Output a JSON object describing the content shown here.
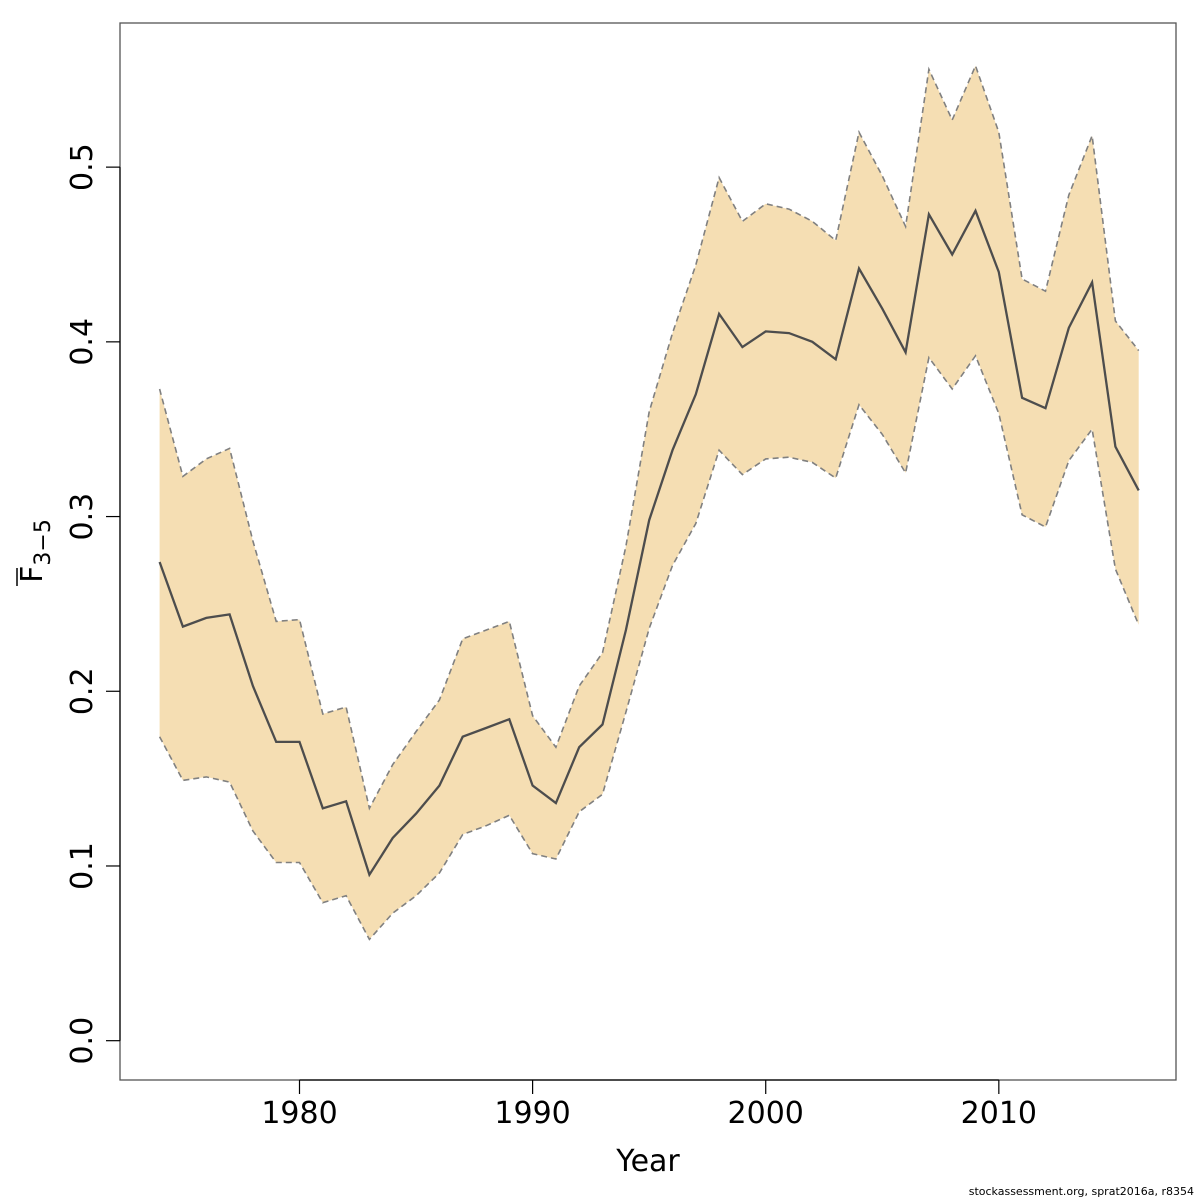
{
  "chart_data": {
    "type": "line",
    "xlabel": "Year",
    "ylabel": "F",
    "ylabel_subscript": "3−5",
    "xlim": [
      1972.3,
      2017.6
    ],
    "ylim": [
      -0.0225,
      0.5825
    ],
    "xticks": [
      1980,
      1990,
      2000,
      2010
    ],
    "yticks": [
      0.0,
      0.1,
      0.2,
      0.3,
      0.4,
      0.5
    ],
    "ytick_labels": [
      "0.0",
      "0.1",
      "0.2",
      "0.3",
      "0.4",
      "0.5"
    ],
    "grid": false,
    "colors": {
      "band": "#f5deb3",
      "line": "#4d4d4d",
      "bounds": "#808080",
      "frame": "#555555"
    },
    "x": [
      1974,
      1975,
      1976,
      1977,
      1978,
      1979,
      1980,
      1981,
      1982,
      1983,
      1984,
      1985,
      1986,
      1987,
      1988,
      1989,
      1990,
      1991,
      1992,
      1993,
      1994,
      1995,
      1996,
      1997,
      1998,
      1999,
      2000,
      2001,
      2002,
      2003,
      2004,
      2005,
      2006,
      2007,
      2008,
      2009,
      2010,
      2011,
      2012,
      2013,
      2014,
      2015,
      2016
    ],
    "series": [
      {
        "role": "estimate",
        "values": [
          0.274,
          0.237,
          0.242,
          0.244,
          0.203,
          0.171,
          0.171,
          0.133,
          0.137,
          0.095,
          0.116,
          0.13,
          0.146,
          0.174,
          0.179,
          0.184,
          0.146,
          0.136,
          0.168,
          0.181,
          0.235,
          0.298,
          0.338,
          0.37,
          0.416,
          0.397,
          0.406,
          0.405,
          0.4,
          0.39,
          0.442,
          0.419,
          0.394,
          0.473,
          0.45,
          0.475,
          0.44,
          0.368,
          0.362,
          0.408,
          0.434,
          0.34,
          0.315
        ]
      },
      {
        "role": "upper",
        "values": [
          0.373,
          0.323,
          0.333,
          0.339,
          0.286,
          0.24,
          0.241,
          0.187,
          0.191,
          0.133,
          0.158,
          0.177,
          0.195,
          0.23,
          0.235,
          0.24,
          0.186,
          0.168,
          0.203,
          0.222,
          0.283,
          0.36,
          0.405,
          0.444,
          0.494,
          0.469,
          0.479,
          0.476,
          0.469,
          0.458,
          0.52,
          0.495,
          0.466,
          0.556,
          0.527,
          0.558,
          0.52,
          0.436,
          0.429,
          0.484,
          0.518,
          0.412,
          0.395
        ]
      },
      {
        "role": "lower",
        "values": [
          0.174,
          0.149,
          0.151,
          0.148,
          0.12,
          0.102,
          0.102,
          0.079,
          0.083,
          0.058,
          0.073,
          0.083,
          0.096,
          0.118,
          0.123,
          0.129,
          0.107,
          0.104,
          0.131,
          0.141,
          0.188,
          0.236,
          0.272,
          0.296,
          0.338,
          0.324,
          0.333,
          0.334,
          0.331,
          0.322,
          0.364,
          0.347,
          0.325,
          0.391,
          0.373,
          0.392,
          0.359,
          0.301,
          0.294,
          0.332,
          0.35,
          0.27,
          0.238
        ]
      }
    ]
  },
  "footer_text": "stockassessment.org, sprat2016a, r8354"
}
